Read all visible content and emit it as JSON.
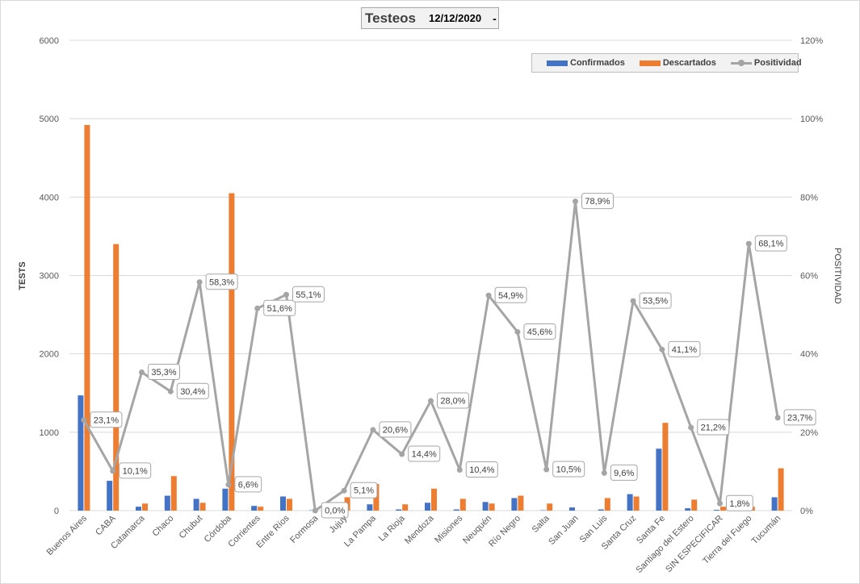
{
  "header": {
    "title": "Testeos",
    "date": "12/12/2020",
    "dropdown_marker": "-"
  },
  "legend": {
    "confirmados": "Confirmados",
    "descartados": "Descartados",
    "positividad": "Positividad"
  },
  "colors": {
    "confirmados": "#4472c4",
    "descartados": "#ed7d31",
    "positividad": "#a5a5a5",
    "grid": "#d9d9d9"
  },
  "chart_data": {
    "type": "bar",
    "title": "Testeos",
    "ylabel": "TESTS",
    "y2label": "POSITIVIDAD",
    "ylim": [
      0,
      6000
    ],
    "y2lim": [
      0,
      120
    ],
    "yticks": [
      "0",
      "1000",
      "2000",
      "3000",
      "4000",
      "5000",
      "6000"
    ],
    "y2ticks": [
      "0%",
      "20%",
      "40%",
      "60%",
      "80%",
      "100%",
      "120%"
    ],
    "grid": true,
    "legend_position": "top-right",
    "categories": [
      "Buenos Aires",
      "CABA",
      "Catamarca",
      "Chaco",
      "Chubut",
      "Córdoba",
      "Corrientes",
      "Entre Ríos",
      "Formosa",
      "Jujuy",
      "La Pampa",
      "La Rioja",
      "Mendoza",
      "Misiones",
      "Neuquén",
      "Río Negro",
      "Salta",
      "San Juan",
      "San Luis",
      "Santa Cruz",
      "Santa Fe",
      "Santiago del Estero",
      "SIN ESPECIFICAR",
      "Tierra del Fuego",
      "Tucumán"
    ],
    "series": [
      {
        "name": "Confirmados",
        "type": "bar",
        "axis": "left",
        "values": [
          1470,
          380,
          50,
          190,
          150,
          280,
          60,
          180,
          5,
          10,
          80,
          15,
          100,
          15,
          110,
          160,
          5,
          40,
          15,
          210,
          790,
          30,
          10,
          105,
          170
        ]
      },
      {
        "name": "Descartados",
        "type": "bar",
        "axis": "left",
        "values": [
          4920,
          3400,
          90,
          440,
          100,
          4050,
          50,
          150,
          0,
          170,
          340,
          80,
          280,
          150,
          90,
          190,
          90,
          0,
          160,
          180,
          1120,
          140,
          50,
          50,
          540
        ]
      },
      {
        "name": "Positividad",
        "type": "line",
        "axis": "right",
        "values": [
          23.1,
          10.1,
          35.3,
          30.4,
          58.3,
          6.6,
          51.6,
          55.1,
          0.0,
          5.1,
          20.6,
          14.4,
          28.0,
          10.4,
          54.9,
          45.6,
          10.5,
          78.9,
          9.6,
          53.5,
          41.1,
          21.2,
          1.8,
          68.1,
          23.7
        ],
        "labels": [
          "23,1%",
          "10,1%",
          "35,3%",
          "30,4%",
          "58,3%",
          "6,6%",
          "51,6%",
          "55,1%",
          "0,0%",
          "5,1%",
          "20,6%",
          "14,4%",
          "28,0%",
          "10,4%",
          "54,9%",
          "45,6%",
          "10,5%",
          "78,9%",
          "9,6%",
          "53,5%",
          "41,1%",
          "21,2%",
          "1,8%",
          "68,1%",
          "23,7%"
        ]
      }
    ]
  }
}
